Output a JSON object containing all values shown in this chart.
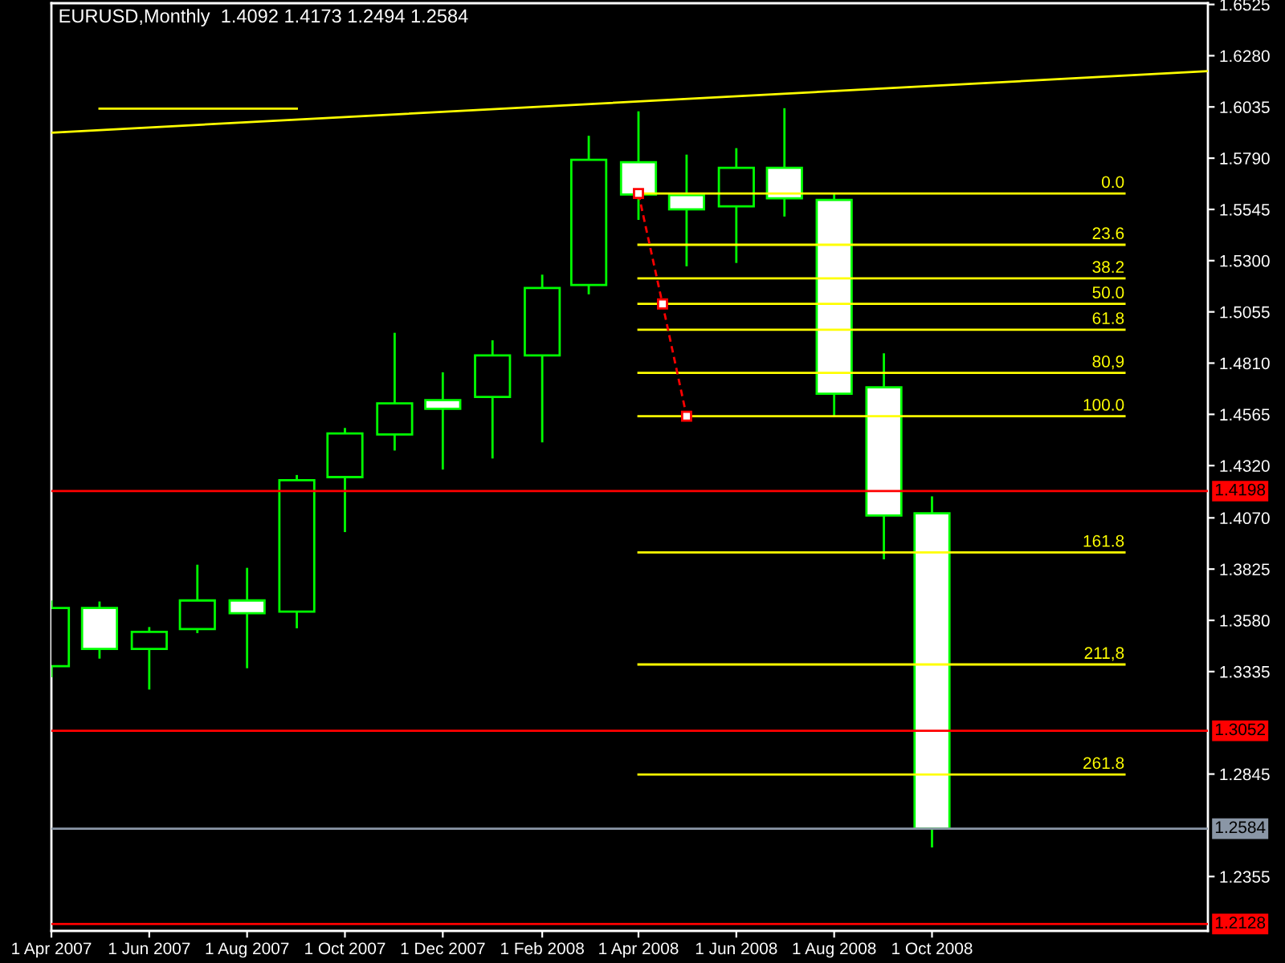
{
  "chart_data": {
    "type": "candlestick",
    "title": "EURUSD,Monthly  1.4092 1.4173 1.2494 1.2584",
    "x": [
      "2007-04",
      "2007-05",
      "2007-06",
      "2007-07",
      "2007-08",
      "2007-09",
      "2007-10",
      "2007-11",
      "2007-12",
      "2008-01",
      "2008-02",
      "2008-03",
      "2008-04",
      "2008-05",
      "2008-06",
      "2008-07",
      "2008-08",
      "2008-09",
      "2008-10"
    ],
    "ohlc": [
      [
        1.3361,
        1.3675,
        1.3308,
        1.3639
      ],
      [
        1.3639,
        1.367,
        1.3397,
        1.3443
      ],
      [
        1.3443,
        1.3548,
        1.3249,
        1.3525
      ],
      [
        1.3538,
        1.3846,
        1.3519,
        1.3675
      ],
      [
        1.3675,
        1.3831,
        1.3351,
        1.3614
      ],
      [
        1.3622,
        1.4275,
        1.3542,
        1.425
      ],
      [
        1.4265,
        1.45,
        1.4002,
        1.4474
      ],
      [
        1.4469,
        1.4955,
        1.4392,
        1.4618
      ],
      [
        1.4633,
        1.4766,
        1.4301,
        1.4592
      ],
      [
        1.4648,
        1.4919,
        1.4354,
        1.4847
      ],
      [
        1.4847,
        1.5233,
        1.4431,
        1.5169
      ],
      [
        1.5184,
        1.5897,
        1.5139,
        1.5782
      ],
      [
        1.5771,
        1.6014,
        1.5495,
        1.5616
      ],
      [
        1.5613,
        1.5807,
        1.5273,
        1.5545
      ],
      [
        1.556,
        1.5838,
        1.5289,
        1.5744
      ],
      [
        1.5744,
        1.6029,
        1.5511,
        1.5598
      ],
      [
        1.559,
        1.5621,
        1.4556,
        1.4664
      ],
      [
        1.4694,
        1.4857,
        1.3872,
        1.4081
      ],
      [
        1.4092,
        1.4173,
        1.2494,
        1.2584
      ]
    ],
    "color": "#00ff00",
    "colors": [
      "#000000",
      "#ffffff",
      "#000000",
      "#000000",
      "#ffffff",
      "#000000",
      "#000000",
      "#000000",
      "#ffffff",
      "#000000",
      "#000000",
      "#000000",
      "#ffffff",
      "#ffffff",
      "#000000",
      "#ffffff",
      "#ffffff",
      "#ffffff",
      "#ffffff"
    ],
    "series": [
      {
        "type": "line",
        "color": "#ffff00",
        "x": [
          "2007-04-01",
          "2009-03-22"
        ],
        "values": [
          1.5912,
          1.6206
        ]
      },
      {
        "type": "line",
        "color": "#ffff00",
        "x": [
          "2007-05-01",
          "2007-09-01"
        ],
        "values": [
          1.6027,
          1.6027
        ]
      },
      {
        "type": "line",
        "name": "0.0",
        "color": "#ffff00",
        "x": [
          "2008-04-01",
          "2009-01-29"
        ],
        "values": [
          1.5621,
          1.5621
        ]
      },
      {
        "type": "line",
        "name": "23.6",
        "color": "#ffff00",
        "x": [
          "2008-04-01",
          "2009-01-29"
        ],
        "values": [
          1.5376,
          1.5376
        ]
      },
      {
        "type": "line",
        "name": "38.2",
        "color": "#ffff00",
        "x": [
          "2008-04-01",
          "2009-01-29"
        ],
        "values": [
          1.5215,
          1.5215
        ]
      },
      {
        "type": "line",
        "name": "50.0",
        "color": "#ffff00",
        "x": [
          "2008-04-01",
          "2009-01-29"
        ],
        "values": [
          1.5093,
          1.5093
        ]
      },
      {
        "type": "line",
        "name": "61.8",
        "color": "#ffff00",
        "x": [
          "2008-04-01",
          "2009-01-29"
        ],
        "values": [
          1.497,
          1.497
        ]
      },
      {
        "type": "line",
        "name": "80,9",
        "color": "#ffff00",
        "x": [
          "2008-04-01",
          "2009-01-29"
        ],
        "values": [
          1.4763,
          1.4763
        ]
      },
      {
        "type": "line",
        "name": "100.0",
        "color": "#ffff00",
        "x": [
          "2008-04-01",
          "2009-01-29"
        ],
        "values": [
          1.4556,
          1.4556
        ]
      },
      {
        "type": "line",
        "name": "161.8",
        "color": "#ffff00",
        "x": [
          "2008-04-01",
          "2009-01-29"
        ],
        "values": [
          1.3905,
          1.3905
        ]
      },
      {
        "type": "line",
        "name": "211,8",
        "color": "#ffff00",
        "x": [
          "2008-04-01",
          "2009-01-29"
        ],
        "values": [
          1.3369,
          1.3369
        ]
      },
      {
        "type": "line",
        "name": "261.8",
        "color": "#ffff00",
        "x": [
          "2008-04-01",
          "2009-01-29"
        ],
        "values": [
          1.2843,
          1.2843
        ]
      },
      {
        "type": "line",
        "color": "#ff0000",
        "line_style": "dashed",
        "marker": "square",
        "x": [
          "2008-04-01",
          "2008-04-16",
          "2008-05-01"
        ],
        "values": [
          1.5621,
          1.5093,
          1.4556
        ]
      }
    ],
    "ref_lines": [
      {
        "axis": "y",
        "value": 1.4198,
        "label": "1.4198",
        "color": "#ff0000"
      },
      {
        "axis": "y",
        "value": 1.3052,
        "label": "1.3052",
        "color": "#ff0000"
      },
      {
        "axis": "y",
        "value": 1.2584,
        "label": "1.2584",
        "color": "#8a96a6"
      },
      {
        "axis": "y",
        "value": 1.2128,
        "label": "1.2128",
        "color": "#ff0000"
      }
    ],
    "xlim": [
      "2007-04-01",
      "2009-03-22"
    ],
    "xticks": [
      {
        "value": "2007-04-01",
        "label": "1 Apr 2007"
      },
      {
        "value": "2007-06-01",
        "label": "1 Jun 2007"
      },
      {
        "value": "2007-08-01",
        "label": "1 Aug 2007"
      },
      {
        "value": "2007-10-01",
        "label": "1 Oct 2007"
      },
      {
        "value": "2007-12-01",
        "label": "1 Dec 2007"
      },
      {
        "value": "2008-02-01",
        "label": "1 Feb 2008"
      },
      {
        "value": "2008-04-01",
        "label": "1 Apr 2008"
      },
      {
        "value": "2008-06-01",
        "label": "1 Jun 2008"
      },
      {
        "value": "2008-08-01",
        "label": "1 Aug 2008"
      },
      {
        "value": "2008-10-01",
        "label": "1 Oct 2008"
      }
    ],
    "ylim": [
      1.2095,
      1.6531
    ],
    "yticks": [
      1.6525,
      {
        "value": 1.628,
        "label": "1.6280"
      },
      1.6035,
      {
        "value": 1.579,
        "label": "1.5790"
      },
      1.5545,
      {
        "value": 1.53,
        "label": "1.5300"
      },
      1.5055,
      {
        "value": 1.481,
        "label": "1.4810"
      },
      1.4565,
      {
        "value": 1.432,
        "label": "1.4320"
      },
      {
        "value": 1.407,
        "label": "1.4070"
      },
      1.3825,
      {
        "value": 1.358,
        "label": "1.3580"
      },
      1.3335,
      1.2845,
      1.2355
    ]
  }
}
